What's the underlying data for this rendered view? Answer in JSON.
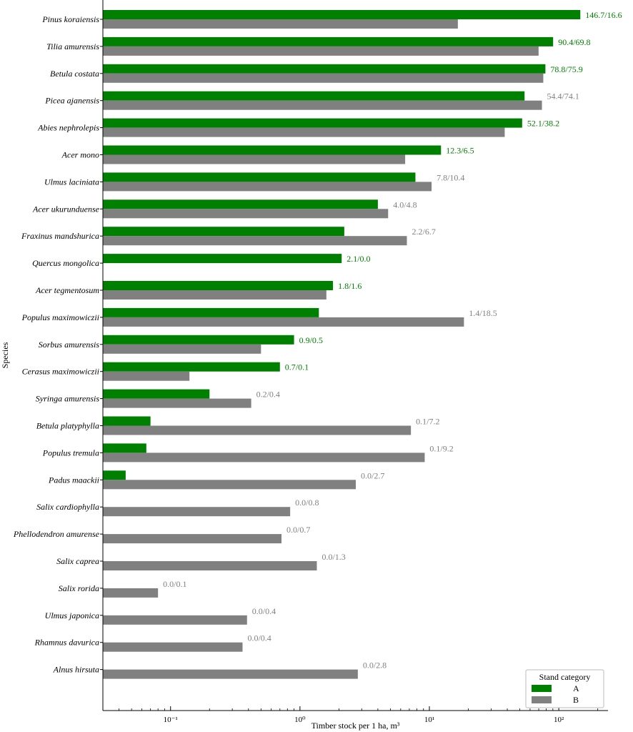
{
  "chart_data": {
    "type": "bar",
    "orientation": "horizontal",
    "xlabel": "Timber stock per 1 ha, m³",
    "ylabel": "Species",
    "x_scale": "log",
    "xlim": [
      0.03,
      240
    ],
    "x_ticks": [
      {
        "value": 0.1,
        "label": "10⁻¹"
      },
      {
        "value": 1,
        "label": "10⁰"
      },
      {
        "value": 10,
        "label": "10¹"
      },
      {
        "value": 100,
        "label": "10²"
      }
    ],
    "legend": {
      "title": "Stand category",
      "position": "bottom-right"
    },
    "colors": {
      "A": "#008000",
      "B": "#808080"
    },
    "categories": [
      "Pinus koraiensis",
      "Tilia amurensis",
      "Betula costata",
      "Picea ajanensis",
      "Abies nephrolepis",
      "Acer mono",
      "Ulmus laciniata",
      "Acer ukurunduense",
      "Fraxinus mandshurica",
      "Quercus mongolica",
      "Acer tegmentosum",
      "Populus maximowiczii",
      "Sorbus amurensis",
      "Cerasus maximowiczii",
      "Syringa amurensis",
      "Betula platyphylla",
      "Populus tremula",
      "Padus maackii",
      "Salix cardiophylla",
      "Phellodendron amurense",
      "Salix caprea",
      "Salix rorida",
      "Ulmus japonica",
      "Rhamnus davurica",
      "Alnus hirsuta"
    ],
    "series": [
      {
        "name": "A",
        "values": [
          146.7,
          90.4,
          78.8,
          54.4,
          52.1,
          12.3,
          7.8,
          4.0,
          2.2,
          2.1,
          1.8,
          1.4,
          0.9,
          0.7,
          0.2,
          0.07,
          0.065,
          0.045,
          0,
          0,
          0,
          0,
          0,
          0,
          0
        ]
      },
      {
        "name": "B",
        "values": [
          16.6,
          69.8,
          75.9,
          74.1,
          38.2,
          6.5,
          10.4,
          4.8,
          6.7,
          0.0,
          1.6,
          18.5,
          0.5,
          0.14,
          0.42,
          7.2,
          9.2,
          2.7,
          0.84,
          0.72,
          1.35,
          0.08,
          0.39,
          0.36,
          2.8
        ]
      }
    ],
    "value_labels": [
      "146.7/16.6",
      "90.4/69.8",
      "78.8/75.9",
      "54.4/74.1",
      "52.1/38.2",
      "12.3/6.5",
      "7.8/10.4",
      "4.0/4.8",
      "2.2/6.7",
      "2.1/0.0",
      "1.8/1.6",
      "1.4/18.5",
      "0.9/0.5",
      "0.7/0.1",
      "0.2/0.4",
      "0.1/7.2",
      "0.1/9.2",
      "0.0/2.7",
      "0.0/0.8",
      "0.0/0.7",
      "0.0/1.3",
      "0.0/0.1",
      "0.0/0.4",
      "0.0/0.4",
      "0.0/2.8"
    ],
    "value_label_colors": [
      "A",
      "A",
      "A",
      "B",
      "A",
      "A",
      "B",
      "B",
      "B",
      "A",
      "A",
      "B",
      "A",
      "A",
      "B",
      "B",
      "B",
      "B",
      "B",
      "B",
      "B",
      "B",
      "B",
      "B",
      "B"
    ]
  }
}
